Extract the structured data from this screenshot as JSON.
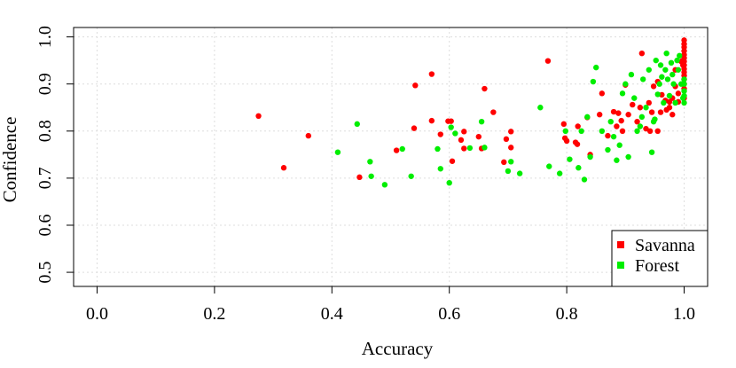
{
  "chart_data": {
    "type": "scatter",
    "xlabel": "Accuracy",
    "ylabel": "Confidence",
    "xlim": [
      -0.04,
      1.04
    ],
    "ylim": [
      0.47,
      1.02
    ],
    "x_ticks": [
      0.0,
      0.2,
      0.4,
      0.6,
      0.8,
      1.0
    ],
    "x_tick_labels": [
      "0.0",
      "0.2",
      "0.4",
      "0.6",
      "0.8",
      "1.0"
    ],
    "y_ticks": [
      0.5,
      0.6,
      0.7,
      0.8,
      0.9,
      1.0
    ],
    "y_tick_labels": [
      "0.5",
      "0.6",
      "0.7",
      "0.8",
      "0.9",
      "1.0"
    ],
    "grid": true,
    "legend_position": "bottom-right",
    "series": [
      {
        "name": "Savanna",
        "color": "#ff0000",
        "points": [
          [
            0.275,
            0.832
          ],
          [
            0.318,
            0.722
          ],
          [
            0.36,
            0.79
          ],
          [
            0.447,
            0.702
          ],
          [
            0.51,
            0.759
          ],
          [
            0.54,
            0.806
          ],
          [
            0.542,
            0.897
          ],
          [
            0.57,
            0.921
          ],
          [
            0.57,
            0.822
          ],
          [
            0.585,
            0.793
          ],
          [
            0.598,
            0.821
          ],
          [
            0.603,
            0.821
          ],
          [
            0.605,
            0.736
          ],
          [
            0.62,
            0.781
          ],
          [
            0.625,
            0.799
          ],
          [
            0.625,
            0.763
          ],
          [
            0.65,
            0.788
          ],
          [
            0.655,
            0.763
          ],
          [
            0.66,
            0.89
          ],
          [
            0.675,
            0.84
          ],
          [
            0.693,
            0.734
          ],
          [
            0.697,
            0.783
          ],
          [
            0.705,
            0.799
          ],
          [
            0.705,
            0.765
          ],
          [
            0.768,
            0.949
          ],
          [
            0.795,
            0.815
          ],
          [
            0.797,
            0.785
          ],
          [
            0.8,
            0.779
          ],
          [
            0.815,
            0.776
          ],
          [
            0.818,
            0.772
          ],
          [
            0.819,
            0.81
          ],
          [
            0.835,
            0.829
          ],
          [
            0.84,
            0.75
          ],
          [
            0.856,
            0.835
          ],
          [
            0.86,
            0.88
          ],
          [
            0.87,
            0.79
          ],
          [
            0.88,
            0.841
          ],
          [
            0.885,
            0.81
          ],
          [
            0.888,
            0.838
          ],
          [
            0.893,
            0.822
          ],
          [
            0.895,
            0.8
          ],
          [
            0.9,
            0.898
          ],
          [
            0.905,
            0.835
          ],
          [
            0.912,
            0.856
          ],
          [
            0.92,
            0.82
          ],
          [
            0.925,
            0.85
          ],
          [
            0.928,
            0.965
          ],
          [
            0.935,
            0.805
          ],
          [
            0.94,
            0.86
          ],
          [
            0.942,
            0.8
          ],
          [
            0.945,
            0.84
          ],
          [
            0.948,
            0.895
          ],
          [
            0.955,
            0.905
          ],
          [
            0.955,
            0.8
          ],
          [
            0.96,
            0.84
          ],
          [
            0.962,
            0.877
          ],
          [
            0.968,
            0.865
          ],
          [
            0.97,
            0.845
          ],
          [
            0.975,
            0.85
          ],
          [
            0.975,
            0.862
          ],
          [
            0.98,
            0.87
          ],
          [
            0.98,
            0.835
          ],
          [
            0.985,
            0.93
          ],
          [
            0.985,
            0.895
          ],
          [
            0.99,
            0.88
          ],
          [
            0.99,
            0.862
          ],
          [
            0.995,
            0.948
          ],
          [
            0.998,
            0.94
          ],
          [
            1.0,
            0.993
          ],
          [
            1.0,
            0.985
          ],
          [
            1.0,
            0.978
          ],
          [
            1.0,
            0.97
          ],
          [
            1.0,
            0.962
          ],
          [
            1.0,
            0.955
          ],
          [
            1.0,
            0.948
          ],
          [
            1.0,
            0.94
          ],
          [
            1.0,
            0.932
          ],
          [
            1.0,
            0.925
          ],
          [
            1.0,
            0.918
          ],
          [
            1.0,
            0.91
          ],
          [
            1.0,
            0.9
          ],
          [
            1.0,
            0.89
          ],
          [
            1.0,
            0.87
          ]
        ]
      },
      {
        "name": "Forest",
        "color": "#00ee00",
        "points": [
          [
            0.41,
            0.755
          ],
          [
            0.443,
            0.815
          ],
          [
            0.465,
            0.735
          ],
          [
            0.467,
            0.704
          ],
          [
            0.49,
            0.686
          ],
          [
            0.52,
            0.762
          ],
          [
            0.535,
            0.704
          ],
          [
            0.58,
            0.762
          ],
          [
            0.585,
            0.72
          ],
          [
            0.6,
            0.69
          ],
          [
            0.603,
            0.808
          ],
          [
            0.61,
            0.795
          ],
          [
            0.635,
            0.764
          ],
          [
            0.655,
            0.82
          ],
          [
            0.66,
            0.765
          ],
          [
            0.7,
            0.715
          ],
          [
            0.705,
            0.735
          ],
          [
            0.72,
            0.71
          ],
          [
            0.755,
            0.85
          ],
          [
            0.77,
            0.725
          ],
          [
            0.788,
            0.71
          ],
          [
            0.798,
            0.8
          ],
          [
            0.805,
            0.74
          ],
          [
            0.82,
            0.722
          ],
          [
            0.825,
            0.8
          ],
          [
            0.83,
            0.697
          ],
          [
            0.835,
            0.83
          ],
          [
            0.84,
            0.745
          ],
          [
            0.845,
            0.905
          ],
          [
            0.85,
            0.935
          ],
          [
            0.86,
            0.8
          ],
          [
            0.87,
            0.76
          ],
          [
            0.875,
            0.82
          ],
          [
            0.88,
            0.788
          ],
          [
            0.885,
            0.738
          ],
          [
            0.89,
            0.77
          ],
          [
            0.895,
            0.88
          ],
          [
            0.9,
            0.9
          ],
          [
            0.905,
            0.745
          ],
          [
            0.91,
            0.92
          ],
          [
            0.915,
            0.87
          ],
          [
            0.92,
            0.8
          ],
          [
            0.925,
            0.81
          ],
          [
            0.928,
            0.83
          ],
          [
            0.93,
            0.91
          ],
          [
            0.935,
            0.85
          ],
          [
            0.94,
            0.93
          ],
          [
            0.945,
            0.755
          ],
          [
            0.948,
            0.82
          ],
          [
            0.95,
            0.825
          ],
          [
            0.952,
            0.95
          ],
          [
            0.955,
            0.878
          ],
          [
            0.958,
            0.9
          ],
          [
            0.96,
            0.94
          ],
          [
            0.962,
            0.915
          ],
          [
            0.965,
            0.86
          ],
          [
            0.968,
            0.93
          ],
          [
            0.97,
            0.965
          ],
          [
            0.972,
            0.91
          ],
          [
            0.975,
            0.875
          ],
          [
            0.978,
            0.945
          ],
          [
            0.98,
            0.92
          ],
          [
            0.982,
            0.9
          ],
          [
            0.985,
            0.86
          ],
          [
            0.988,
            0.95
          ],
          [
            0.99,
            0.93
          ],
          [
            0.992,
            0.96
          ],
          [
            0.995,
            0.9
          ],
          [
            0.998,
            0.87
          ],
          [
            1.0,
            0.91
          ],
          [
            1.0,
            0.885
          ],
          [
            1.0,
            0.86
          ],
          [
            1.0,
            0.875
          ],
          [
            1.0,
            0.9
          ]
        ]
      }
    ]
  }
}
